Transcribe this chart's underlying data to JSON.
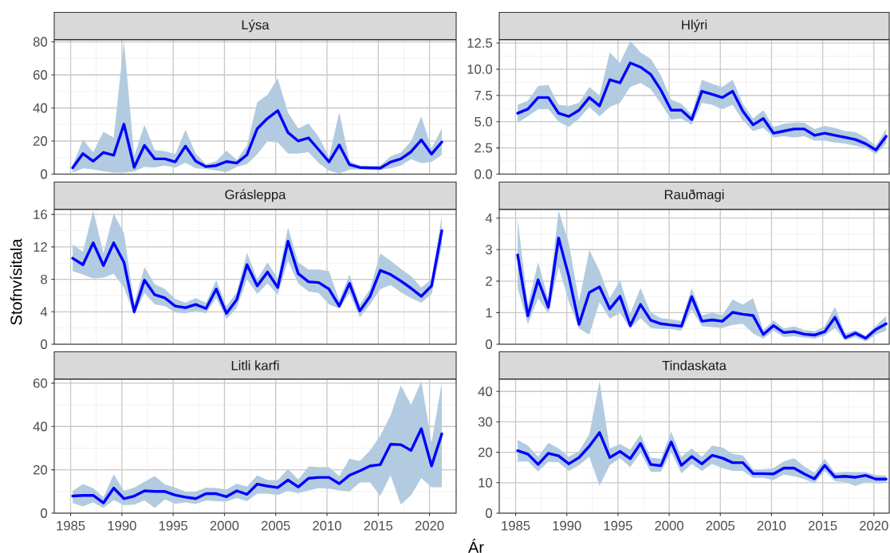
{
  "chart_data": [
    {
      "type": "line",
      "title": "Lýsa",
      "x": [
        1985.2,
        1986.2,
        1987.2,
        1988.2,
        1989.2,
        1990.2,
        1991.2,
        1992.2,
        1993.2,
        1994.2,
        1995.2,
        1996.2,
        1997.2,
        1998.2,
        1999.2,
        2000.2,
        2001.2,
        2002.2,
        2003.2,
        2004.2,
        2005.2,
        2006.2,
        2007.2,
        2008.2,
        2009.2,
        2010.2,
        2011.2,
        2012.2,
        2013.2,
        2014.2,
        2015.2,
        2016.2,
        2017.2,
        2018.2,
        2019.2,
        2020.2,
        2021.2
      ],
      "xlim": [
        1983.4,
        2022.6
      ],
      "xticks": [
        1985,
        1990,
        1995,
        2000,
        2005,
        2010,
        2015,
        2020
      ],
      "ylim": [
        0,
        81.2
      ],
      "yticks": [
        0,
        20,
        40,
        60,
        80
      ],
      "grid": true,
      "tick_labels": "y",
      "series": [
        {
          "color": "#0000ff",
          "values": [
            3.8,
            12.4,
            7.8,
            13.1,
            11.4,
            30.2,
            4.1,
            17.3,
            9.2,
            9.2,
            7.4,
            16.9,
            7.8,
            4.5,
            5.2,
            7.6,
            6.7,
            11.7,
            27.5,
            33.7,
            38.4,
            25.1,
            20.0,
            21.9,
            14.7,
            7.4,
            17.6,
            5.7,
            4.0,
            3.8,
            3.6,
            7.3,
            9.2,
            13.5,
            20.7,
            12.1,
            19.4
          ],
          "upper": [
            5.2,
            21,
            13.3,
            25.6,
            22.1,
            80.3,
            11,
            29.7,
            14.5,
            13.8,
            12.1,
            26.8,
            12.4,
            6,
            7.8,
            14.2,
            8.6,
            17.3,
            43.5,
            48,
            57.9,
            37.1,
            27.6,
            30.6,
            22.5,
            10.4,
            37.5,
            7.8,
            5.2,
            4.8,
            5.2,
            10.7,
            13,
            19.9,
            34.9,
            15.6,
            27.6
          ],
          "lower": [
            0.9,
            3.5,
            2.9,
            1.7,
            0.9,
            0.9,
            1.7,
            4.3,
            4,
            5.2,
            3.8,
            6.9,
            3.5,
            3.1,
            2.2,
            1.2,
            4.3,
            6,
            12.1,
            19.9,
            19,
            12.4,
            12.4,
            13.3,
            6.6,
            2.0,
            0.3,
            2.6,
            2.9,
            2.6,
            2.6,
            3.5,
            5.2,
            9,
            6.6,
            7.3,
            11.7
          ]
        }
      ]
    },
    {
      "type": "line",
      "title": "Hlýri",
      "x": [
        1985.2,
        1986.2,
        1987.2,
        1988.2,
        1989.2,
        1990.2,
        1991.2,
        1992.2,
        1993.2,
        1994.2,
        1995.2,
        1996.2,
        1997.2,
        1998.2,
        1999.2,
        2000.2,
        2001.2,
        2002.2,
        2003.2,
        2004.2,
        2005.2,
        2006.2,
        2007.2,
        2008.2,
        2009.2,
        2010.2,
        2011.2,
        2012.2,
        2013.2,
        2014.2,
        2015.2,
        2016.2,
        2017.2,
        2018.2,
        2019.2,
        2020.2,
        2021.2
      ],
      "xlim": [
        1983.4,
        2021.5
      ],
      "xticks": [
        1985,
        1990,
        1995,
        2000,
        2005,
        2010,
        2015,
        2020
      ],
      "ylim": [
        0,
        12.8
      ],
      "yticks": [
        {
          "value": 0,
          "label": "0.0"
        },
        2.5,
        {
          "value": 5,
          "label": "5.0"
        },
        7.5,
        {
          "value": 10,
          "label": "10.0"
        },
        12.5
      ],
      "grid": true,
      "tick_labels": "y",
      "series": [
        {
          "color": "#0000ff",
          "values": [
            5.8,
            6.2,
            7.3,
            7.3,
            5.8,
            5.5,
            6.1,
            7.3,
            6.5,
            9.0,
            8.7,
            10.6,
            10.2,
            9.5,
            8.0,
            6.1,
            6.1,
            5.2,
            7.9,
            7.6,
            7.3,
            7.9,
            6.0,
            4.7,
            5.3,
            3.9,
            4.1,
            4.3,
            4.3,
            3.7,
            3.9,
            3.7,
            3.5,
            3.3,
            2.9,
            2.3,
            3.6
          ],
          "upper": [
            6.6,
            7.0,
            8.4,
            8.5,
            6.6,
            6.5,
            6.8,
            8.3,
            7.5,
            11.6,
            10.6,
            12.7,
            11.6,
            11.0,
            9.4,
            7.1,
            6.7,
            5.7,
            9.0,
            8.6,
            8.3,
            9.0,
            6.7,
            5.3,
            6.1,
            4.5,
            4.8,
            4.9,
            4.9,
            4.3,
            4.6,
            4.4,
            4.1,
            4.0,
            3.5,
            2.7,
            4.3
          ],
          "lower": [
            4.9,
            5.5,
            6.2,
            6.2,
            5.0,
            4.5,
            5.3,
            6.4,
            5.5,
            6.4,
            6.8,
            8.3,
            8.7,
            8.1,
            6.7,
            5.2,
            5.3,
            4.7,
            6.8,
            6.6,
            6.2,
            6.6,
            5.1,
            4.1,
            4.4,
            3.5,
            3.6,
            3.5,
            3.6,
            3.2,
            3.2,
            3.0,
            2.9,
            2.7,
            2.5,
            1.9,
            2.9
          ]
        }
      ]
    },
    {
      "type": "line",
      "title": "Grásleppa",
      "ylabel": "Stofnvísitala",
      "x": [
        1985.2,
        1986.2,
        1987.2,
        1988.2,
        1989.2,
        1990.2,
        1991.2,
        1992.2,
        1993.2,
        1994.2,
        1995.2,
        1996.2,
        1997.2,
        1998.2,
        1999.2,
        2000.2,
        2001.2,
        2002.2,
        2003.2,
        2004.2,
        2005.2,
        2006.2,
        2007.2,
        2008.2,
        2009.2,
        2010.2,
        2011.2,
        2012.2,
        2013.2,
        2014.2,
        2015.2,
        2016.2,
        2017.2,
        2018.2,
        2019.2,
        2020.2,
        2021.2
      ],
      "xlim": [
        1983.4,
        2022.6
      ],
      "xticks": [
        1985,
        1990,
        1995,
        2000,
        2005,
        2010,
        2015,
        2020
      ],
      "ylim": [
        0,
        16.6
      ],
      "yticks": [
        0,
        4,
        8,
        12,
        16
      ],
      "grid": true,
      "tick_labels": "y",
      "series": [
        {
          "color": "#0000ff",
          "values": [
            10.6,
            9.8,
            12.5,
            9.7,
            12.5,
            10.1,
            4.0,
            7.9,
            6.1,
            5.7,
            4.7,
            4.5,
            4.9,
            4.4,
            6.8,
            3.8,
            5.5,
            9.8,
            7.2,
            8.9,
            7.0,
            12.7,
            8.7,
            7.7,
            7.6,
            6.8,
            4.7,
            7.5,
            4.1,
            5.9,
            9.1,
            8.6,
            7.8,
            6.9,
            5.9,
            7.2,
            14.0
          ],
          "upper": [
            12.3,
            11.4,
            16.5,
            11.2,
            16.1,
            13.7,
            5.0,
            9.5,
            7.4,
            6.8,
            5.6,
            5.1,
            5.7,
            5.1,
            7.9,
            4.7,
            6.4,
            11.3,
            8.0,
            10.1,
            8.1,
            14.4,
            10.1,
            9.2,
            9.2,
            9.0,
            5.4,
            8.6,
            4.9,
            6.8,
            11.2,
            10.3,
            9.3,
            8.4,
            7.0,
            8.0,
            15.8
          ],
          "lower": [
            9.0,
            8.6,
            8.1,
            8.2,
            8.7,
            7.0,
            3.6,
            6.3,
            4.9,
            4.7,
            3.9,
            3.8,
            4.1,
            3.8,
            5.7,
            3.1,
            4.5,
            8.0,
            6.2,
            7.5,
            6.1,
            10.3,
            7.5,
            6.5,
            6.3,
            4.9,
            4.4,
            6.3,
            3.3,
            4.9,
            6.8,
            7.3,
            6.4,
            5.7,
            5.1,
            6.2,
            12.1
          ]
        }
      ]
    },
    {
      "type": "line",
      "title": "Rauðmagi",
      "x": [
        1985.2,
        1986.2,
        1987.2,
        1988.2,
        1989.2,
        1990.2,
        1991.2,
        1992.2,
        1993.2,
        1994.2,
        1995.2,
        1996.2,
        1997.2,
        1998.2,
        1999.2,
        2000.2,
        2001.2,
        2002.2,
        2003.2,
        2004.2,
        2005.2,
        2006.2,
        2007.2,
        2008.2,
        2009.2,
        2010.2,
        2011.2,
        2012.2,
        2013.2,
        2014.2,
        2015.2,
        2016.2,
        2017.2,
        2018.2,
        2019.2,
        2020.2,
        2021.2
      ],
      "xlim": [
        1983.4,
        2021.5
      ],
      "xticks": [
        1985,
        1990,
        1995,
        2000,
        2005,
        2010,
        2015,
        2020
      ],
      "ylim": [
        0,
        4.27
      ],
      "yticks": [
        0,
        1,
        2,
        3,
        4
      ],
      "grid": true,
      "tick_labels": "y",
      "series": [
        {
          "color": "#0000ff",
          "values": [
            2.83,
            0.9,
            2.04,
            1.17,
            3.37,
            2.15,
            0.63,
            1.64,
            1.82,
            1.12,
            1.52,
            0.59,
            1.26,
            0.76,
            0.65,
            0.61,
            0.57,
            1.51,
            0.73,
            0.77,
            0.73,
            1.01,
            0.95,
            0.91,
            0.31,
            0.59,
            0.37,
            0.4,
            0.32,
            0.29,
            0.4,
            0.85,
            0.21,
            0.35,
            0.19,
            0.47,
            0.65
          ],
          "upper": [
            3.97,
            1.24,
            2.6,
            1.42,
            4.24,
            3.21,
            1.35,
            2.99,
            2.33,
            1.46,
            2.03,
            0.97,
            1.78,
            1.01,
            0.83,
            0.79,
            0.74,
            1.78,
            0.92,
            0.99,
            0.92,
            1.42,
            1.26,
            1.46,
            0.45,
            0.76,
            0.5,
            0.57,
            0.45,
            0.41,
            0.57,
            1.19,
            0.34,
            0.45,
            0.27,
            0.59,
            0.9
          ],
          "lower": [
            1.78,
            0.63,
            1.46,
            0.97,
            2.45,
            1.35,
            0.5,
            0.3,
            1.33,
            0.81,
            0.99,
            0.5,
            0.83,
            0.52,
            0.48,
            0.48,
            0.43,
            1.1,
            0.57,
            0.54,
            0.52,
            0.61,
            0.65,
            0.34,
            0.18,
            0.43,
            0.23,
            0.25,
            0.21,
            0.18,
            0.27,
            0.52,
            0.12,
            0.23,
            0.09,
            0.3,
            0.43
          ]
        }
      ]
    },
    {
      "type": "line",
      "title": "Litli karfi",
      "x": [
        1985.2,
        1986.2,
        1987.2,
        1988.2,
        1989.2,
        1990.2,
        1991.2,
        1992.2,
        1993.2,
        1994.2,
        1995.2,
        1996.2,
        1997.2,
        1998.2,
        1999.2,
        2000.2,
        2001.2,
        2002.2,
        2003.2,
        2004.2,
        2005.2,
        2006.2,
        2007.2,
        2008.2,
        2009.2,
        2010.2,
        2011.2,
        2012.2,
        2013.2,
        2014.2,
        2015.2,
        2016.2,
        2017.2,
        2018.2,
        2019.2,
        2020.2,
        2021.2
      ],
      "xlim": [
        1983.4,
        2022.6
      ],
      "xticks": [
        1985,
        1990,
        1995,
        2000,
        2005,
        2010,
        2015,
        2020
      ],
      "ylim": [
        0,
        61.8
      ],
      "yticks": [
        0,
        20,
        40,
        60
      ],
      "grid": true,
      "series": [
        {
          "color": "#0000ff",
          "values": [
            7.9,
            8.2,
            8.2,
            4.7,
            11.6,
            6.7,
            7.9,
            10.3,
            10.0,
            10.0,
            8.3,
            7.4,
            6.7,
            9.0,
            9.0,
            7.6,
            10.3,
            8.7,
            13.4,
            12.5,
            11.8,
            15.3,
            12.1,
            16.1,
            16.5,
            16.5,
            13.6,
            17.5,
            19.5,
            21.8,
            22.4,
            31.8,
            31.6,
            29.0,
            39.0,
            21.8,
            36.6
          ],
          "upper": [
            10.3,
            13.4,
            11.6,
            7.4,
            17.9,
            10.3,
            11.8,
            14.5,
            17.1,
            13.2,
            11.8,
            9.9,
            9.9,
            11.8,
            11.6,
            10.9,
            13.6,
            12.2,
            17.5,
            15.3,
            15.3,
            20.4,
            15.5,
            21.5,
            21.2,
            21.2,
            17.1,
            25.1,
            24.1,
            29.0,
            35.9,
            45.1,
            59.0,
            50.0,
            60.9,
            32.6,
            60.3
          ],
          "lower": [
            4.7,
            3.0,
            5.0,
            2.4,
            6.1,
            3.7,
            4.0,
            5.9,
            2.4,
            6.3,
            4.3,
            5.0,
            4.2,
            5.8,
            5.5,
            5.3,
            7.0,
            5.5,
            9.0,
            9.0,
            8.4,
            10.3,
            9.2,
            10.5,
            11.6,
            11.3,
            10.5,
            10.0,
            14.2,
            14.2,
            7.9,
            17.5,
            4.0,
            8.3,
            16.2,
            12.0,
            12.0
          ]
        }
      ]
    },
    {
      "type": "line",
      "title": "Tindaskata",
      "xlabel": "Ár",
      "x": [
        1985.2,
        1986.2,
        1987.2,
        1988.2,
        1989.2,
        1990.2,
        1991.2,
        1992.2,
        1993.2,
        1994.2,
        1995.2,
        1996.2,
        1997.2,
        1998.2,
        1999.2,
        2000.2,
        2001.2,
        2002.2,
        2003.2,
        2004.2,
        2005.2,
        2006.2,
        2007.2,
        2008.2,
        2009.2,
        2010.2,
        2011.2,
        2012.2,
        2013.2,
        2014.2,
        2015.2,
        2016.2,
        2017.2,
        2018.2,
        2019.2,
        2020.2,
        2021.2
      ],
      "xlim": [
        1983.4,
        2021.5
      ],
      "xticks": [
        1985,
        1990,
        1995,
        2000,
        2005,
        2010,
        2015,
        2020
      ],
      "ylim": [
        0,
        44
      ],
      "yticks": [
        0,
        10,
        20,
        30,
        40
      ],
      "grid": true,
      "series": [
        {
          "color": "#0000ff",
          "values": [
            20.5,
            19.4,
            16.0,
            19.7,
            18.8,
            16.2,
            18.3,
            22.0,
            26.5,
            18.3,
            20.3,
            17.9,
            22.9,
            16.0,
            15.6,
            23.4,
            15.7,
            18.6,
            16.2,
            19.0,
            18.1,
            16.6,
            16.6,
            13.0,
            13.0,
            12.9,
            14.8,
            14.8,
            12.9,
            11.3,
            15.7,
            11.9,
            12.1,
            11.8,
            12.4,
            11.2,
            11.2
          ],
          "upper": [
            24.1,
            22.2,
            18.5,
            23.1,
            21.3,
            18.5,
            20.4,
            25.9,
            43.4,
            21.3,
            22.7,
            20.8,
            25.9,
            18.3,
            17.9,
            26.8,
            18.5,
            21.3,
            18.5,
            22.2,
            21.6,
            19.5,
            19.0,
            14.4,
            14.4,
            14.8,
            17.0,
            18.1,
            15.3,
            13.3,
            17.9,
            13.3,
            13.6,
            13.5,
            13.5,
            12.5,
            12.4
          ],
          "lower": [
            16.9,
            17.0,
            13.7,
            16.9,
            16.7,
            13.9,
            15.8,
            18.5,
            9.0,
            15.8,
            18.1,
            15.1,
            19.9,
            13.6,
            13.6,
            20.1,
            13.0,
            16.2,
            13.9,
            16.2,
            14.8,
            13.9,
            13.9,
            11.6,
            11.6,
            10.9,
            12.7,
            12.1,
            11.2,
            9.8,
            13.9,
            10.5,
            10.2,
            8.9,
            10.2,
            9.8,
            10.0
          ]
        }
      ]
    }
  ]
}
